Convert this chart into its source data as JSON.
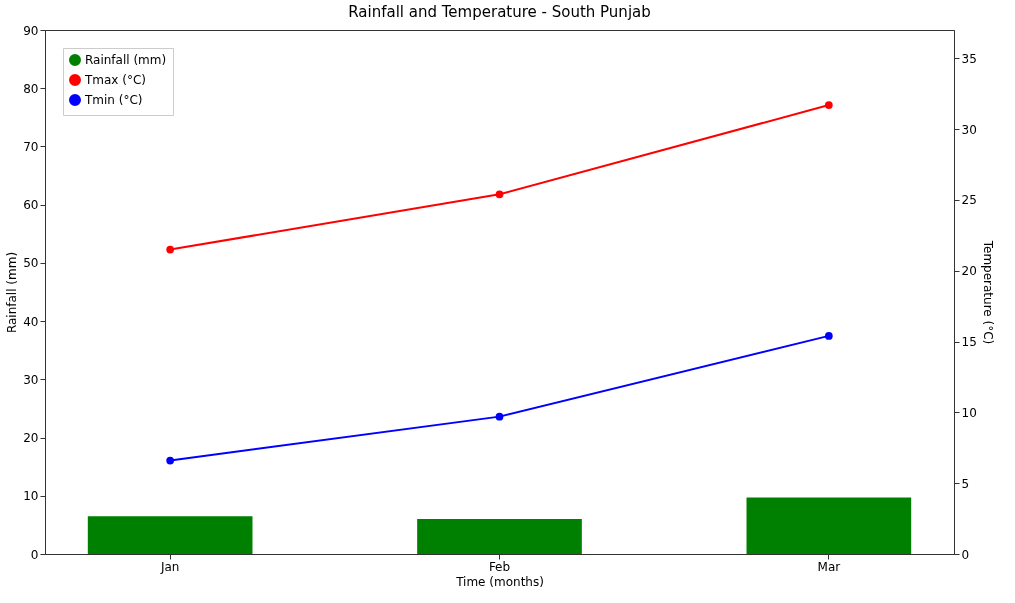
{
  "chart_data": {
    "type": "bar",
    "title": "Rainfall and Temperature - South Punjab",
    "xlabel": "Time (months)",
    "ylabel": "Rainfall (mm)",
    "y2label": "Temperature (°C)",
    "categories": [
      "Jan",
      "Feb",
      "Mar"
    ],
    "series": [
      {
        "name": "Rainfall (mm)",
        "color": "#008000",
        "values": [
          6.5,
          6.0,
          9.7
        ]
      },
      {
        "name": "Tmax (°C)",
        "type": "line",
        "axis": "y2",
        "color": "#ff0000",
        "values": [
          21.5,
          25.4,
          31.7
        ]
      },
      {
        "name": "Tmin (°C)",
        "type": "line",
        "axis": "y2",
        "color": "#0000ff",
        "values": [
          6.6,
          9.7,
          15.4
        ]
      }
    ],
    "ylim": [
      0,
      90
    ],
    "yticks": [
      0,
      10,
      20,
      30,
      40,
      50,
      60,
      70,
      80,
      90
    ],
    "y2lim": [
      0,
      37
    ],
    "y2ticks": [
      0,
      5,
      10,
      15,
      20,
      25,
      30,
      35
    ],
    "grid": false,
    "legend": "top left",
    "marker": "circle",
    "line_style": "solid"
  }
}
